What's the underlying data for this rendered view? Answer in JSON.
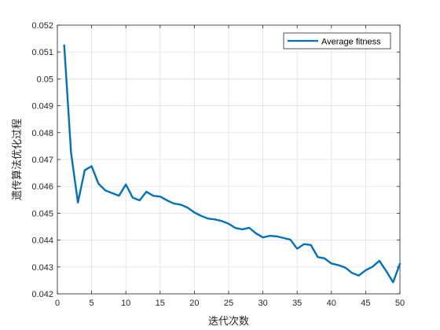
{
  "chart_data": {
    "type": "line",
    "xlabel": "迭代次数",
    "ylabel": "遗传算法优化过程",
    "xlim": [
      0,
      50
    ],
    "ylim": [
      0.042,
      0.052
    ],
    "xticks": [
      "0",
      "5",
      "10",
      "15",
      "20",
      "25",
      "30",
      "35",
      "40",
      "45",
      "50"
    ],
    "yticks": [
      "0.042",
      "0.043",
      "0.044",
      "0.045",
      "0.046",
      "0.047",
      "0.048",
      "0.049",
      "0.05",
      "0.051",
      "0.052"
    ],
    "grid": true,
    "legend_position": "top-right",
    "series": [
      {
        "name": "Average fitness",
        "color": "#0072BD",
        "x": [
          1,
          2,
          3,
          4,
          5,
          6,
          7,
          8,
          9,
          10,
          11,
          12,
          13,
          14,
          15,
          16,
          17,
          18,
          19,
          20,
          21,
          22,
          23,
          24,
          25,
          26,
          27,
          28,
          29,
          30,
          31,
          32,
          33,
          34,
          35,
          36,
          37,
          38,
          39,
          40,
          41,
          42,
          43,
          44,
          45,
          46,
          47,
          48,
          49,
          50
        ],
        "y": [
          0.05125,
          0.04725,
          0.0454,
          0.0466,
          0.04675,
          0.0461,
          0.04585,
          0.04575,
          0.04565,
          0.04607,
          0.04558,
          0.04548,
          0.0458,
          0.04565,
          0.04562,
          0.04548,
          0.04536,
          0.04532,
          0.04521,
          0.04503,
          0.0449,
          0.0448,
          0.04477,
          0.04471,
          0.04461,
          0.04445,
          0.0444,
          0.04446,
          0.04425,
          0.0441,
          0.04416,
          0.04414,
          0.04408,
          0.04402,
          0.04368,
          0.04385,
          0.04382,
          0.04337,
          0.04332,
          0.04313,
          0.04307,
          0.04298,
          0.04278,
          0.04268,
          0.04288,
          0.04301,
          0.04323,
          0.04285,
          0.04243,
          0.04312
        ]
      }
    ]
  }
}
